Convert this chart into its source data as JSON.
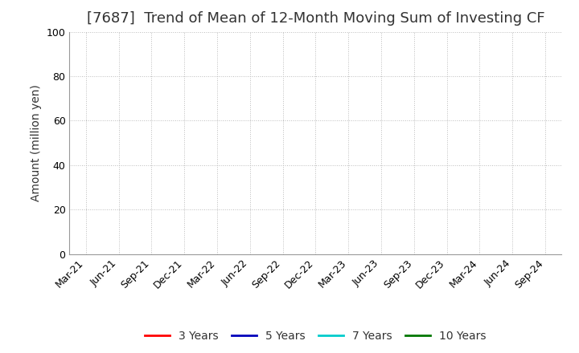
{
  "title": "[7687]  Trend of Mean of 12-Month Moving Sum of Investing CF",
  "ylabel": "Amount (million yen)",
  "ylim": [
    0,
    100
  ],
  "yticks": [
    0,
    20,
    40,
    60,
    80,
    100
  ],
  "x_tick_labels": [
    "Mar-21",
    "Jun-21",
    "Sep-21",
    "Dec-21",
    "Mar-22",
    "Jun-22",
    "Sep-22",
    "Dec-22",
    "Mar-23",
    "Jun-23",
    "Sep-23",
    "Dec-23",
    "Mar-24",
    "Jun-24",
    "Sep-24"
  ],
  "background_color": "#ffffff",
  "plot_bg_color": "#ffffff",
  "grid_color": "#bbbbbb",
  "legend_entries": [
    {
      "label": "3 Years",
      "color": "#ff0000"
    },
    {
      "label": "5 Years",
      "color": "#0000bb"
    },
    {
      "label": "7 Years",
      "color": "#00cccc"
    },
    {
      "label": "10 Years",
      "color": "#007700"
    }
  ],
  "title_fontsize": 13,
  "axis_label_fontsize": 10,
  "tick_fontsize": 9,
  "legend_fontsize": 10
}
